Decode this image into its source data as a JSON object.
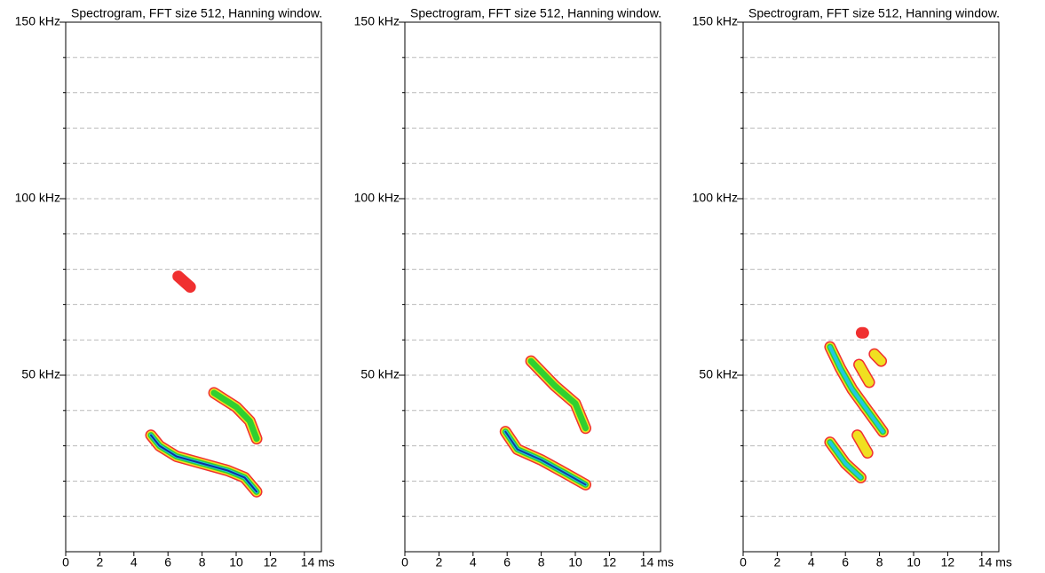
{
  "chart_data": [
    {
      "type": "spectrogram",
      "title": "Spectrogram, FFT size 512, Hanning window.",
      "xlim": [
        0,
        15
      ],
      "ylim": [
        0,
        150
      ],
      "xticks": [
        0,
        2,
        4,
        6,
        8,
        10,
        12,
        {
          "value": 14,
          "label": "14 ms"
        }
      ],
      "yticks": [
        {
          "value": 50,
          "label": "50 kHz"
        },
        {
          "value": 100,
          "label": "100 kHz"
        },
        {
          "value": 150,
          "label": "150 kHz"
        }
      ],
      "ygrid": [
        10,
        20,
        30,
        40,
        50,
        60,
        70,
        80,
        90,
        100,
        110,
        120,
        130,
        140
      ],
      "grid": true,
      "tracks": [
        {
          "x": [
            5.0,
            5.5,
            6.5,
            8.0,
            9.5,
            10.5,
            11.2
          ],
          "y": [
            33,
            30,
            27,
            25,
            23,
            21,
            17
          ],
          "colors": [
            "#f03030",
            "#f0e020",
            "#30d030",
            "#20c8e0",
            "#1030a0"
          ]
        },
        {
          "x": [
            8.7,
            10.0,
            10.8,
            11.2
          ],
          "y": [
            45,
            41,
            37,
            32
          ],
          "colors": [
            "#f03030",
            "#f0e020",
            "#30d030"
          ]
        },
        {
          "x": [
            6.6,
            7.3
          ],
          "y": [
            78,
            75
          ],
          "colors": [
            "#f03030"
          ]
        }
      ]
    },
    {
      "type": "spectrogram",
      "title": "Spectrogram, FFT size 512, Hanning window.",
      "xlim": [
        0,
        15
      ],
      "ylim": [
        0,
        150
      ],
      "xticks": [
        0,
        2,
        4,
        6,
        8,
        10,
        12,
        {
          "value": 14,
          "label": "14 ms"
        }
      ],
      "yticks": [
        {
          "value": 50,
          "label": "50 kHz"
        },
        {
          "value": 100,
          "label": "100 kHz"
        },
        {
          "value": 150,
          "label": "150 kHz"
        }
      ],
      "ygrid": [
        10,
        20,
        30,
        40,
        50,
        60,
        70,
        80,
        90,
        100,
        110,
        120,
        130,
        140
      ],
      "grid": true,
      "tracks": [
        {
          "x": [
            5.9,
            6.6,
            8.0,
            9.5,
            10.6
          ],
          "y": [
            34,
            29,
            26,
            22,
            19
          ],
          "colors": [
            "#f03030",
            "#f0e020",
            "#30d030",
            "#20c8e0",
            "#1040a0"
          ]
        },
        {
          "x": [
            7.4,
            8.8,
            10.0,
            10.6
          ],
          "y": [
            54,
            47,
            42,
            35
          ],
          "colors": [
            "#f03030",
            "#f0e020",
            "#30d030"
          ]
        }
      ]
    },
    {
      "type": "spectrogram",
      "title": "Spectrogram, FFT size 512, Hanning window.",
      "xlim": [
        0,
        15
      ],
      "ylim": [
        0,
        150
      ],
      "xticks": [
        0,
        2,
        4,
        6,
        8,
        10,
        12,
        {
          "value": 14,
          "label": "14 ms"
        }
      ],
      "yticks": [
        {
          "value": 50,
          "label": "50 kHz"
        },
        {
          "value": 100,
          "label": "100 kHz"
        },
        {
          "value": 150,
          "label": "150 kHz"
        }
      ],
      "ygrid": [
        10,
        20,
        30,
        40,
        50,
        60,
        70,
        80,
        90,
        100,
        110,
        120,
        130,
        140
      ],
      "grid": true,
      "tracks": [
        {
          "x": [
            5.1,
            5.7,
            6.4,
            7.3,
            8.2
          ],
          "y": [
            58,
            52,
            46,
            40,
            34
          ],
          "colors": [
            "#f03030",
            "#f0e020",
            "#30d030",
            "#20c8e0"
          ]
        },
        {
          "x": [
            7.7,
            8.1
          ],
          "y": [
            56,
            54
          ],
          "colors": [
            "#f03030",
            "#f0e020"
          ]
        },
        {
          "x": [
            6.8,
            7.4
          ],
          "y": [
            53,
            48
          ],
          "colors": [
            "#f03030",
            "#f0e020"
          ]
        },
        {
          "x": [
            5.1,
            6.0,
            6.9
          ],
          "y": [
            31,
            25,
            21
          ],
          "colors": [
            "#f03030",
            "#f0e020",
            "#30d030",
            "#20c8e0"
          ]
        },
        {
          "x": [
            6.7,
            7.3
          ],
          "y": [
            33,
            28
          ],
          "colors": [
            "#f03030",
            "#f0e020"
          ]
        },
        {
          "x": [
            6.95,
            7.05
          ],
          "y": [
            62,
            62
          ],
          "colors": [
            "#f03030"
          ]
        }
      ]
    }
  ]
}
